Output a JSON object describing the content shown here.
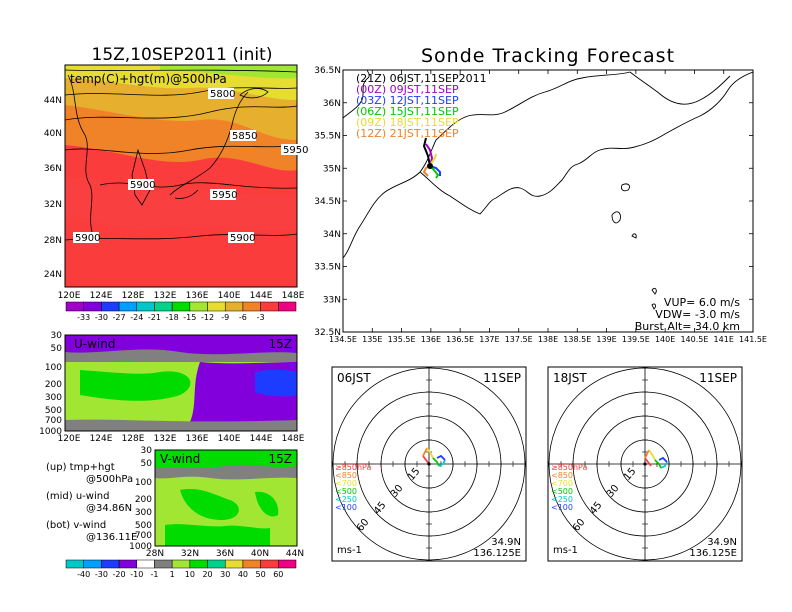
{
  "left_title": "15Z,10SEP2011 (init)",
  "right_title": "Sonde Tracking Forecast",
  "colors": {
    "temp_scale": [
      "#a000c8",
      "#8200dc",
      "#1e3cff",
      "#00a0ff",
      "#00c8c8",
      "#00d28c",
      "#00dc00",
      "#a0e632",
      "#e6dc32",
      "#e6af2d",
      "#f08228",
      "#fa3c3c",
      "#f00082"
    ],
    "wind_scale": [
      "#00c8c8",
      "#00a0ff",
      "#1e3cff",
      "#8200dc",
      "#ffffff",
      "#808080",
      "#a0e632",
      "#00dc00",
      "#00d28c",
      "#e6dc32",
      "#f08228",
      "#fa3c3c",
      "#f00082"
    ]
  },
  "map_panel": {
    "label": "temp(C)+hgt(m)@500hPa",
    "lat_labels": [
      "44N",
      "40N",
      "36N",
      "32N",
      "28N",
      "24N"
    ],
    "lon_labels": [
      "120E",
      "124E",
      "128E",
      "132E",
      "136E",
      "140E",
      "144E",
      "148E"
    ],
    "contour_labels": [
      "5800",
      "5850",
      "5950",
      "5900",
      "5950",
      "5900",
      "5900"
    ],
    "colorbar_ticks": [
      "-33",
      "-30",
      "-27",
      "-24",
      "-21",
      "-18",
      "-15",
      "-12",
      "-9",
      "-6",
      "-3"
    ]
  },
  "uwind_panel": {
    "label": "U-wind",
    "time": "15Z",
    "p_labels": [
      "30",
      "50",
      "100",
      "200",
      "300",
      "500",
      "700",
      "1000"
    ],
    "lon_labels": [
      "120E",
      "124E",
      "128E",
      "132E",
      "136E",
      "140E",
      "144E",
      "148E"
    ]
  },
  "vwind_panel": {
    "label": "V-wind",
    "time": "15Z",
    "p_labels": [
      "30",
      "50",
      "100",
      "200",
      "300",
      "500",
      "700",
      "1000"
    ],
    "lat_labels": [
      "28N",
      "32N",
      "36N",
      "40N",
      "44N"
    ],
    "colorbar_ticks": [
      "-40",
      "-30",
      "-20",
      "-10",
      "-1",
      "1",
      "10",
      "20",
      "30",
      "40",
      "50",
      "60"
    ]
  },
  "legend_notes": [
    {
      "line1": "(up) tmp+hgt",
      "line2": "@500hPa"
    },
    {
      "line1": "(mid) u-wind",
      "line2": "@34.86N"
    },
    {
      "line1": "(bot) v-wind",
      "line2": "@136.11E"
    }
  ],
  "track_map": {
    "lat_labels": [
      "36.5N",
      "36N",
      "35.5N",
      "35N",
      "34.5N",
      "34N",
      "33.5N",
      "33N",
      "32.5N"
    ],
    "lon_labels": [
      "134.5E",
      "135E",
      "135.5E",
      "136E",
      "136.5E",
      "137E",
      "137.5E",
      "138E",
      "138.5E",
      "139E",
      "139.5E",
      "140E",
      "140.5E",
      "141E",
      "141.5E"
    ],
    "runs": [
      {
        "text": "(21Z)  06JST,11SEP2011",
        "color": "#000000"
      },
      {
        "text": "(00Z)  09JST,11SEP",
        "color": "#a000c8"
      },
      {
        "text": "(03Z)  12JST,11SEP",
        "color": "#1e3cff"
      },
      {
        "text": "(06Z)  15JST,11SEP",
        "color": "#00c800"
      },
      {
        "text": "(09Z)  18JST,11SEP",
        "color": "#e6dc32"
      },
      {
        "text": "(12Z)  21JST,11SEP",
        "color": "#f08228"
      }
    ],
    "vup": "VUP=  6.0  m/s",
    "vdw": "VDW= -3.0  m/s",
    "burst": "Burst Alt=  34.0  km"
  },
  "hodographs": [
    {
      "time": "06JST",
      "date": "11SEP",
      "lat": "34.9N",
      "lon": "136.125E",
      "unit": "ms-1"
    },
    {
      "time": "18JST",
      "date": "11SEP",
      "lat": "34.9N",
      "lon": "136.125E",
      "unit": "ms-1"
    }
  ],
  "ring_labels": [
    "15",
    "30",
    "45",
    "60"
  ],
  "pressure_legend": [
    {
      "text": "≥850hPa",
      "color": "#fa3c3c"
    },
    {
      "text": "<850",
      "color": "#f08228"
    },
    {
      "text": "<700",
      "color": "#e6dc32"
    },
    {
      "text": "<500",
      "color": "#00c800"
    },
    {
      "text": "<250",
      "color": "#00c8c8"
    },
    {
      "text": "<100",
      "color": "#1e3cff"
    }
  ]
}
